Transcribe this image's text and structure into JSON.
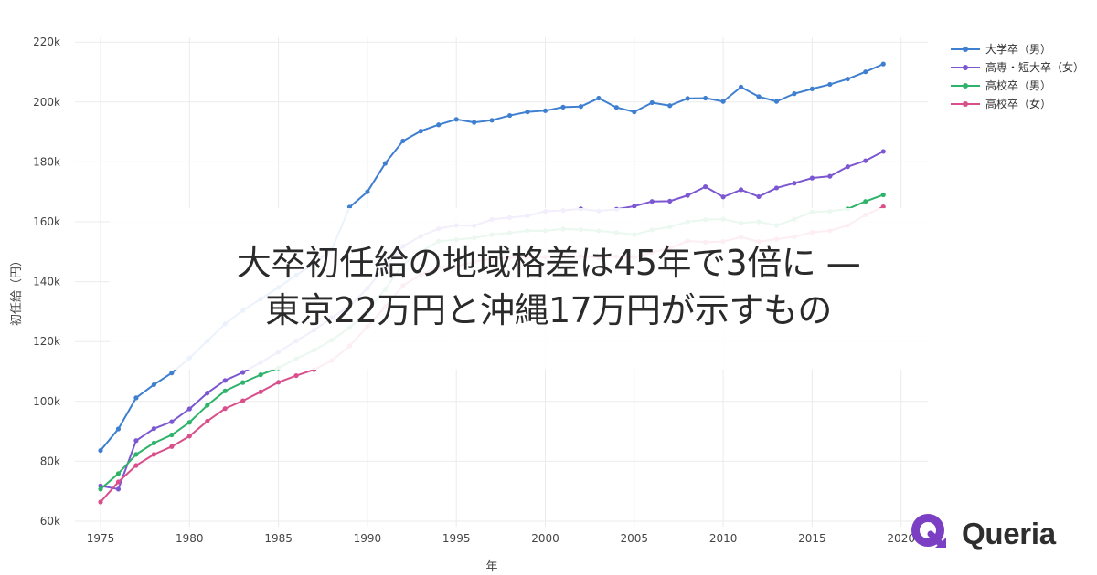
{
  "headline": {
    "line1": "大卒初任給の地域格差は45年で3倍に —",
    "line2": "東京22万円と沖縄17万円が示すもの"
  },
  "brand": {
    "name": "Queria",
    "color": "#7b3fc4"
  },
  "chart_data": {
    "type": "line",
    "title": "",
    "xlabel": "年",
    "ylabel": "初任給（円）",
    "x_ticks": [
      "1975",
      "1980",
      "1985",
      "1990",
      "1995",
      "2000",
      "2005",
      "2010",
      "2015",
      "2020"
    ],
    "y_ticks": [
      "60k",
      "80k",
      "100k",
      "120k",
      "140k",
      "160k",
      "180k",
      "200k",
      "220k"
    ],
    "xlim": [
      1973.6,
      2021.6
    ],
    "ylim": [
      59000,
      222000
    ],
    "grid": true,
    "legend_position": "top-right",
    "x": [
      1975,
      1976,
      1977,
      1978,
      1979,
      1980,
      1981,
      1982,
      1983,
      1984,
      1985,
      1986,
      1987,
      1988,
      1989,
      1990,
      1991,
      1992,
      1993,
      1994,
      1995,
      1996,
      1997,
      1998,
      1999,
      2000,
      2001,
      2002,
      2003,
      2004,
      2005,
      2006,
      2007,
      2008,
      2009,
      2010,
      2011,
      2012,
      2013,
      2014,
      2015,
      2016,
      2017,
      2018,
      2019
    ],
    "series": [
      {
        "name": "大学卒（男）",
        "color": "#3f7fd0",
        "values": [
          83600,
          90800,
          101200,
          105600,
          109500,
          114500,
          120200,
          125900,
          130400,
          134200,
          138100,
          142200,
          146000,
          150800,
          164900,
          170000,
          179500,
          187000,
          190300,
          192400,
          194200,
          193200,
          193900,
          195500,
          196700,
          197100,
          198300,
          198500,
          201300,
          198200,
          196700,
          199800,
          198800,
          201200,
          201300,
          200200,
          205000,
          201800,
          200200,
          202800,
          204400,
          205900,
          207700,
          210100,
          212700
        ]
      },
      {
        "name": "高専・短大卒（女）",
        "color": "#7b57d1",
        "values": [
          71800,
          70700,
          86900,
          90900,
          93200,
          97500,
          102800,
          107000,
          109700,
          113000,
          116500,
          120200,
          123800,
          128000,
          131900,
          137800,
          145000,
          151800,
          155200,
          157700,
          158800,
          158700,
          160800,
          161400,
          162000,
          163500,
          163800,
          164300,
          163600,
          164200,
          165200,
          166800,
          166900,
          168800,
          171700,
          168300,
          170700,
          168400,
          171300,
          172900,
          174600,
          175200,
          178400,
          180400,
          183500
        ]
      },
      {
        "name": "高校卒（男）",
        "color": "#2fb36a",
        "values": [
          70700,
          75900,
          82300,
          86100,
          88800,
          93000,
          98700,
          103500,
          106300,
          108900,
          111200,
          114200,
          117100,
          120500,
          124600,
          130000,
          137500,
          145600,
          150000,
          153500,
          154000,
          154600,
          155700,
          156300,
          157000,
          157000,
          157600,
          157400,
          157000,
          156400,
          155700,
          157300,
          158300,
          160000,
          160700,
          160900,
          159600,
          160000,
          158800,
          160900,
          163300,
          163500,
          164300,
          166800,
          169000
        ]
      },
      {
        "name": "高校卒（女）",
        "color": "#d94f8c",
        "values": [
          66400,
          73100,
          78600,
          82300,
          84900,
          88400,
          93400,
          97600,
          100200,
          103200,
          106400,
          108600,
          110600,
          113600,
          118500,
          125000,
          131600,
          138700,
          142300,
          144800,
          145100,
          146600,
          147700,
          148000,
          148300,
          148200,
          148600,
          148500,
          148000,
          148400,
          148100,
          149800,
          151100,
          153600,
          153200,
          153400,
          154900,
          153400,
          154200,
          155000,
          156500,
          157000,
          158800,
          162300,
          165000
        ]
      }
    ]
  }
}
